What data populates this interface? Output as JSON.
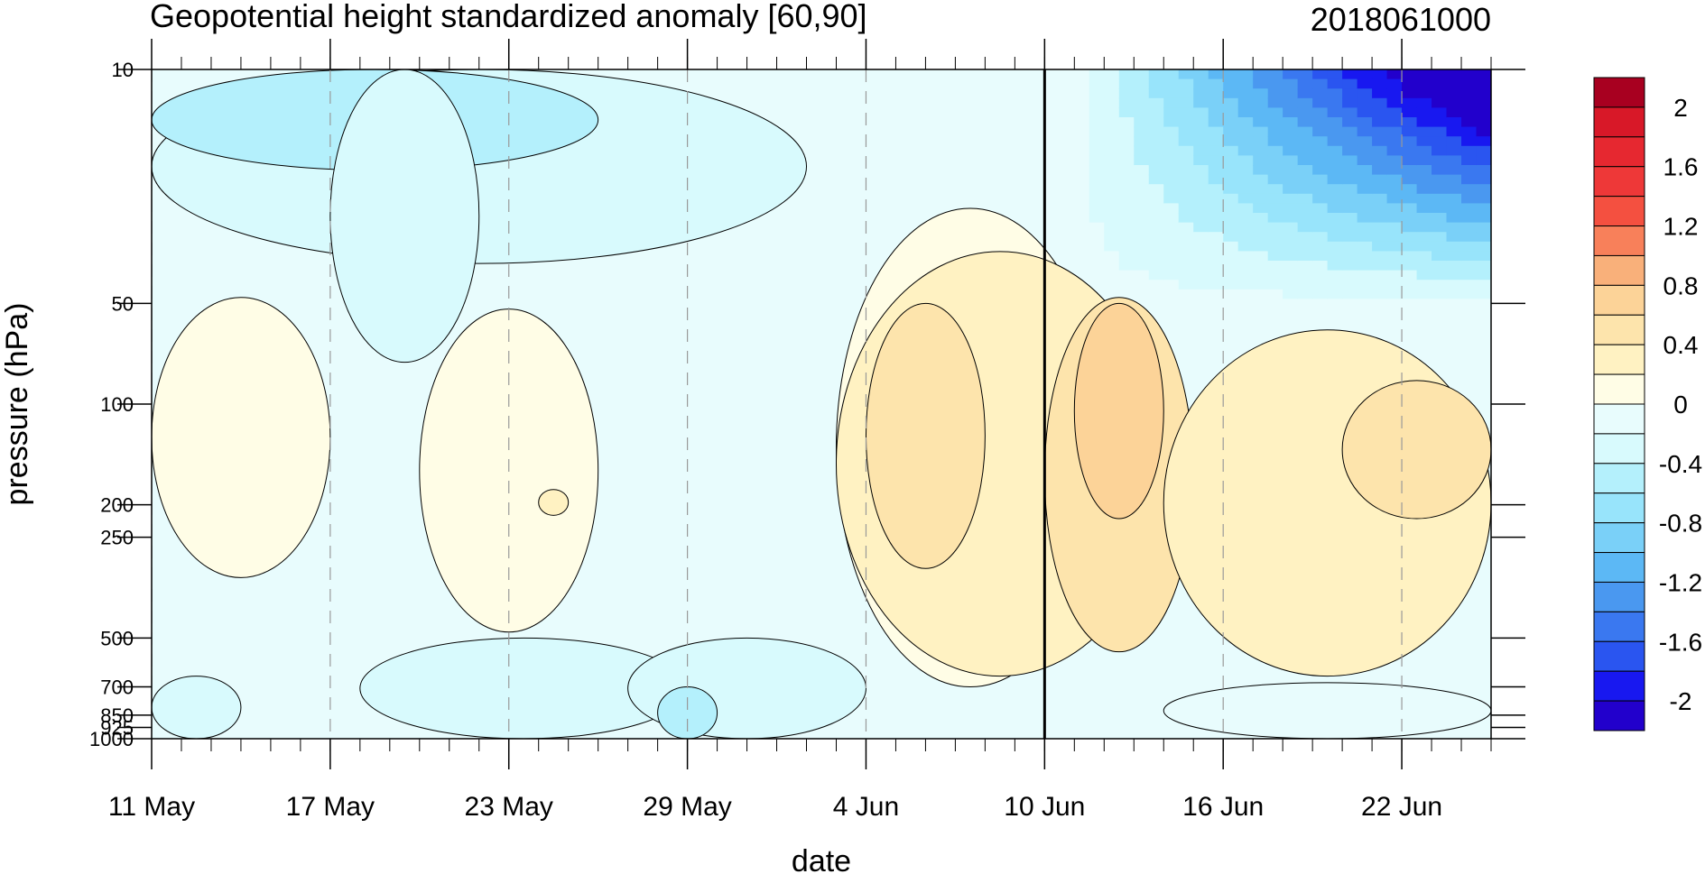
{
  "chart_data": {
    "type": "heatmap",
    "title": "Geopotential height standardized anomaly [60,90]",
    "subtitle": "2018061000",
    "xlabel": "date",
    "ylabel": "pressure (hPa)",
    "x_start": "2018-05-11",
    "x_end": "2018-06-25",
    "x_ticks": [
      "11 May",
      "17 May",
      "23 May",
      "29 May",
      "4 Jun",
      "10 Jun",
      "16 Jun",
      "22 Jun"
    ],
    "x_tick_dates": [
      "2018-05-11",
      "2018-05-17",
      "2018-05-23",
      "2018-05-29",
      "2018-06-04",
      "2018-06-10",
      "2018-06-16",
      "2018-06-22"
    ],
    "y_scale": "log",
    "y_reversed": true,
    "ylim": [
      1000,
      10
    ],
    "y_tick_labels": [
      "10",
      "50",
      "100",
      "200",
      "250",
      "500",
      "700",
      "850",
      "925",
      "1000"
    ],
    "y_ticks": [
      10,
      50,
      100,
      200,
      250,
      500,
      700,
      850,
      925,
      1000
    ],
    "levels": [
      -2.2,
      -2,
      -1.8,
      -1.6,
      -1.4,
      -1.2,
      -1,
      -0.8,
      -0.6,
      -0.4,
      -0.2,
      0,
      0.2,
      0.4,
      0.6,
      0.8,
      1,
      1.2,
      1.4,
      1.6,
      1.8,
      2,
      2.2
    ],
    "colorbar_labels": [
      "2",
      "1.6",
      "1.2",
      "0.8",
      "0.4",
      "0",
      "-0.4",
      "-0.8",
      "-1.2",
      "-1.6",
      "-2"
    ],
    "colorbar_label_values": [
      2,
      1.6,
      1.2,
      0.8,
      0.4,
      0,
      -0.4,
      -0.8,
      -1.2,
      -1.6,
      -2
    ],
    "colors": [
      "#2200cc",
      "#1818f0",
      "#2a55f0",
      "#3a78f0",
      "#4a98f0",
      "#5cb8f5",
      "#7ad0f8",
      "#98e4fb",
      "#b4f0fc",
      "#d8fafd",
      "#e8fcfd",
      "#fffde6",
      "#fff2c2",
      "#fde4ac",
      "#fcd398",
      "#f9b07a",
      "#f8805a",
      "#f45040",
      "#ee3838",
      "#e62830",
      "#d81828",
      "#a80020"
    ],
    "forecast_start": "2018-06-10",
    "grid": false,
    "legend": "right colorbar",
    "events": [
      {
        "start": "2018-05-11",
        "end": "2018-05-17",
        "p_top": 48,
        "p_bot": 330,
        "value": 0.1
      },
      {
        "start": "2018-05-20",
        "end": "2018-05-26",
        "p_top": 52,
        "p_bot": 480,
        "value": 0.1
      },
      {
        "start": "2018-05-24",
        "end": "2018-05-25",
        "p_top": 180,
        "p_bot": 215,
        "value": 0.3
      },
      {
        "start": "2018-06-03",
        "end": "2018-06-12",
        "p_top": 26,
        "p_bot": 700,
        "value": 0.1
      },
      {
        "start": "2018-06-03",
        "end": "2018-06-14",
        "p_top": 35,
        "p_bot": 650,
        "value": 0.3
      },
      {
        "start": "2018-06-04",
        "end": "2018-06-08",
        "p_top": 50,
        "p_bot": 310,
        "value": 0.5
      },
      {
        "start": "2018-06-10",
        "end": "2018-06-15",
        "p_top": 48,
        "p_bot": 550,
        "value": 0.5
      },
      {
        "start": "2018-06-11",
        "end": "2018-06-14",
        "p_top": 50,
        "p_bot": 220,
        "value": 0.7
      },
      {
        "start": "2018-06-14",
        "end": "2018-06-25",
        "p_top": 60,
        "p_bot": 650,
        "value": 0.3
      },
      {
        "start": "2018-06-20",
        "end": "2018-06-25",
        "p_top": 85,
        "p_bot": 220,
        "value": 0.5
      },
      {
        "start": "2018-05-11",
        "end": "2018-06-02",
        "p_top": 10,
        "p_bot": 38,
        "value": -0.3
      },
      {
        "start": "2018-05-11",
        "end": "2018-05-26",
        "p_top": 10,
        "p_bot": 20,
        "value": -0.45
      },
      {
        "start": "2018-05-17",
        "end": "2018-05-22",
        "p_top": 10,
        "p_bot": 75,
        "value": -0.4
      },
      {
        "start": "2018-05-18",
        "end": "2018-05-29",
        "p_top": 500,
        "p_bot": 1000,
        "value": -0.3
      },
      {
        "start": "2018-05-11",
        "end": "2018-05-14",
        "p_top": 650,
        "p_bot": 1000,
        "value": -0.3
      },
      {
        "start": "2018-05-27",
        "end": "2018-06-04",
        "p_top": 500,
        "p_bot": 1000,
        "value": -0.3
      },
      {
        "start": "2018-05-28",
        "end": "2018-05-30",
        "p_top": 700,
        "p_bot": 1000,
        "value": -0.5
      },
      {
        "start": "2018-06-14",
        "end": "2018-06-25",
        "p_top": 680,
        "p_bot": 1000,
        "value": -0.15
      }
    ]
  }
}
